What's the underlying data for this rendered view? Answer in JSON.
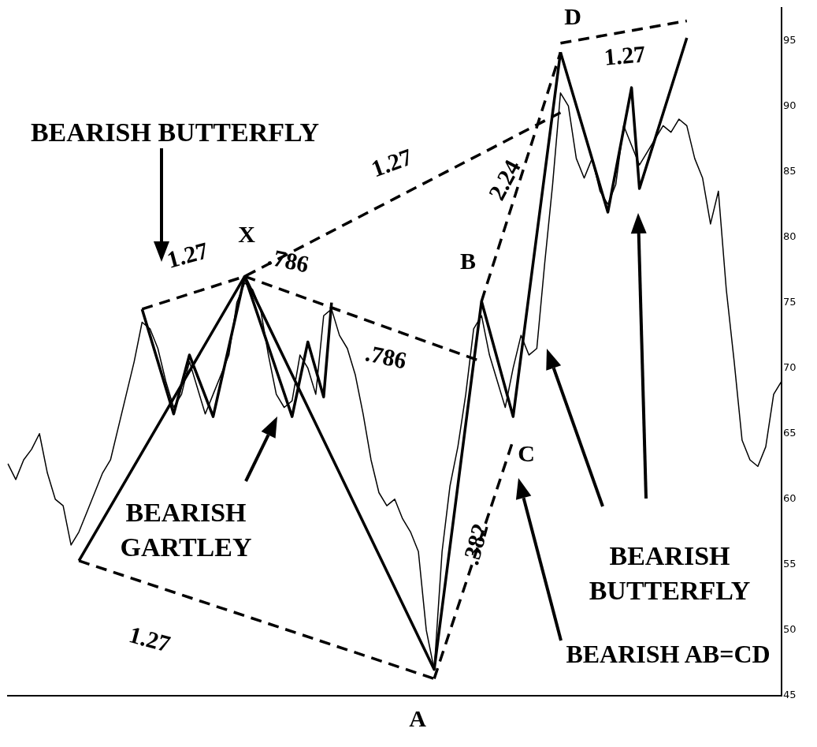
{
  "chart_data": {
    "type": "line",
    "categories": [
      null,
      null,
      null,
      null,
      null,
      null,
      null,
      null,
      null,
      null,
      null,
      null,
      null,
      null,
      null,
      null,
      null,
      null,
      null,
      null,
      null,
      null,
      null,
      null,
      null,
      null,
      null,
      null,
      null,
      null,
      null,
      null,
      null,
      null,
      null,
      null,
      null,
      null,
      null,
      null,
      null,
      null,
      null,
      null,
      null,
      null,
      null,
      null,
      null,
      null,
      null,
      null,
      null,
      null,
      null,
      null,
      null,
      null,
      null,
      null,
      null,
      null,
      null,
      null,
      null,
      null,
      null,
      null,
      null,
      null,
      null,
      null,
      null,
      null,
      null,
      null,
      null,
      null,
      null,
      null,
      null,
      null,
      null,
      null,
      null,
      null,
      null,
      null,
      null,
      null,
      null,
      null,
      null,
      null,
      null,
      null,
      null,
      null,
      null
    ],
    "ylim": [
      45,
      97.5
    ],
    "yticks": [
      45,
      50,
      55,
      60,
      65,
      70,
      75,
      80,
      85,
      90,
      95
    ],
    "tick_labels": "y",
    "grid": false,
    "legend": false,
    "marker": "none",
    "series": [
      {
        "color": "#000000",
        "line_style": "solid",
        "values": [
          62.7,
          61.5,
          63,
          63.8,
          65,
          62,
          60,
          59.5,
          56.5,
          57.5,
          59,
          60.5,
          62,
          63,
          65.5,
          68,
          70.5,
          73.5,
          73,
          71.5,
          69,
          67,
          68,
          70.5,
          68.5,
          66.5,
          68,
          69.5,
          71,
          75,
          76.5,
          76,
          74.5,
          71,
          68,
          67,
          67.5,
          71,
          70,
          68,
          74,
          74.5,
          72.5,
          71.5,
          69.5,
          66.5,
          63,
          60.5,
          59.5,
          60,
          58.5,
          57.5,
          56,
          50,
          47,
          56,
          61,
          64,
          68,
          73,
          74,
          71,
          69,
          67,
          70,
          72.5,
          71,
          71.5,
          78,
          84,
          91,
          90,
          86,
          84.5,
          86,
          83.5,
          82.5,
          84,
          88.5,
          87,
          85.5,
          86.5,
          87.5,
          88.5,
          88,
          89,
          88.5,
          86,
          84.5,
          81,
          83.5,
          76,
          70.5,
          64.5,
          63,
          62.5,
          64,
          68,
          69
        ]
      },
      {
        "color": "#000000",
        "line_style": "solid",
        "values": [
          null,
          null,
          null,
          null,
          null,
          null,
          null,
          null,
          null,
          55.3,
          null,
          null,
          null,
          null,
          null,
          null,
          null,
          null,
          null,
          null,
          null,
          null,
          null,
          null,
          null,
          null,
          null,
          null,
          null,
          null,
          77,
          null,
          null,
          null,
          null,
          null,
          null,
          null,
          null,
          null,
          null,
          null,
          null,
          null,
          null,
          null,
          null,
          null,
          null,
          null,
          null,
          null,
          null,
          null,
          47,
          null,
          null,
          null,
          null,
          null,
          75.1,
          null,
          null,
          null,
          66.3,
          null,
          null,
          null,
          null,
          null,
          94.1,
          null,
          null,
          null,
          null,
          null,
          null,
          null,
          null,
          null,
          null,
          null,
          null,
          null,
          null,
          null,
          null,
          null,
          null,
          null,
          null,
          null,
          null,
          null,
          null,
          null,
          null,
          null,
          null
        ]
      },
      {
        "color": "#000000",
        "line_style": "solid",
        "values": [
          null,
          null,
          null,
          null,
          null,
          null,
          null,
          null,
          null,
          null,
          null,
          null,
          null,
          null,
          null,
          null,
          null,
          74.5,
          null,
          null,
          null,
          66.5,
          null,
          71,
          null,
          null,
          66.3,
          null,
          null,
          null,
          77,
          null,
          null,
          null,
          null,
          null,
          null,
          null,
          null,
          null,
          null,
          null,
          null,
          null,
          null,
          null,
          null,
          null,
          null,
          null,
          null,
          null,
          null,
          null,
          null,
          null,
          null,
          null,
          null,
          null,
          null,
          null,
          null,
          null,
          null,
          null,
          null,
          null,
          null,
          null,
          null,
          null,
          null,
          null,
          null,
          null,
          null,
          null,
          null,
          null,
          null,
          null,
          null,
          null,
          null,
          null,
          null,
          null,
          null,
          null,
          null,
          null,
          null,
          null,
          null,
          null,
          null,
          null,
          null
        ]
      },
      {
        "color": "#000000",
        "line_style": "solid",
        "values": [
          null,
          null,
          null,
          null,
          null,
          null,
          null,
          null,
          null,
          null,
          null,
          null,
          null,
          null,
          null,
          null,
          null,
          null,
          null,
          null,
          null,
          null,
          null,
          null,
          null,
          null,
          null,
          null,
          null,
          null,
          77,
          null,
          null,
          null,
          null,
          null,
          66.3,
          null,
          72,
          null,
          67.8,
          75,
          null,
          null,
          null,
          null,
          null,
          null,
          null,
          null,
          null,
          null,
          null,
          null,
          null,
          null,
          null,
          null,
          null,
          null,
          null,
          null,
          null,
          null,
          null,
          null,
          null,
          null,
          null,
          null,
          null,
          null,
          null,
          null,
          null,
          null,
          null,
          null,
          null,
          null,
          null,
          null,
          null,
          null,
          null,
          null,
          null,
          null,
          null,
          null,
          null,
          null,
          null,
          null,
          null,
          null,
          null,
          null,
          null
        ]
      },
      {
        "color": "#000000",
        "line_style": "solid",
        "values": [
          null,
          null,
          null,
          null,
          null,
          null,
          null,
          null,
          null,
          null,
          null,
          null,
          null,
          null,
          null,
          null,
          null,
          null,
          null,
          null,
          null,
          null,
          null,
          null,
          null,
          null,
          null,
          null,
          null,
          null,
          null,
          null,
          null,
          null,
          null,
          null,
          null,
          null,
          null,
          null,
          null,
          null,
          null,
          null,
          null,
          null,
          null,
          null,
          null,
          null,
          null,
          null,
          null,
          null,
          null,
          null,
          null,
          null,
          null,
          null,
          null,
          null,
          null,
          null,
          null,
          null,
          null,
          null,
          null,
          null,
          94.1,
          null,
          null,
          null,
          null,
          null,
          81.9,
          null,
          null,
          91.4,
          83.7,
          null,
          null,
          null,
          null,
          null,
          95.2,
          null,
          null,
          null,
          null,
          null,
          null,
          null,
          null,
          null,
          null,
          null,
          null
        ]
      },
      {
        "color": "#000000",
        "line_style": "dashed",
        "values": [
          null,
          null,
          null,
          null,
          null,
          null,
          null,
          null,
          null,
          55.3,
          null,
          null,
          null,
          null,
          null,
          null,
          null,
          null,
          null,
          null,
          null,
          null,
          null,
          null,
          null,
          null,
          null,
          null,
          null,
          null,
          null,
          null,
          null,
          null,
          null,
          null,
          null,
          null,
          null,
          null,
          null,
          null,
          null,
          null,
          null,
          null,
          null,
          null,
          null,
          null,
          null,
          null,
          null,
          null,
          46.3,
          null,
          null,
          null,
          null,
          null,
          null,
          null,
          null,
          null,
          null,
          null,
          null,
          null,
          null,
          null,
          null,
          null,
          null,
          null,
          null,
          null,
          null,
          null,
          null,
          null,
          null,
          null,
          null,
          null,
          null,
          null,
          null,
          null,
          null,
          null,
          null,
          null,
          null,
          null,
          null,
          null,
          null,
          null,
          null
        ]
      },
      {
        "color": "#000000",
        "line_style": "dashed",
        "values": [
          null,
          null,
          null,
          null,
          null,
          null,
          null,
          null,
          null,
          null,
          null,
          null,
          null,
          null,
          null,
          null,
          null,
          74.5,
          null,
          null,
          null,
          null,
          null,
          null,
          null,
          null,
          null,
          null,
          null,
          null,
          77,
          null,
          null,
          null,
          null,
          null,
          null,
          null,
          null,
          null,
          null,
          null,
          null,
          null,
          null,
          null,
          null,
          null,
          null,
          null,
          null,
          null,
          null,
          null,
          null,
          null,
          null,
          null,
          null,
          null,
          null,
          null,
          null,
          null,
          null,
          null,
          null,
          null,
          null,
          null,
          89.5,
          null,
          null,
          null,
          null,
          null,
          null,
          null,
          null,
          null,
          null,
          null,
          null,
          null,
          null,
          null,
          null,
          null,
          null,
          null,
          null,
          null,
          null,
          null,
          null,
          null,
          null,
          null,
          null
        ]
      },
      {
        "color": "#000000",
        "line_style": "dashed",
        "values": [
          null,
          null,
          null,
          null,
          null,
          null,
          null,
          null,
          null,
          null,
          null,
          null,
          null,
          null,
          null,
          null,
          null,
          null,
          null,
          null,
          null,
          null,
          null,
          null,
          null,
          null,
          null,
          null,
          null,
          null,
          77,
          null,
          null,
          null,
          null,
          null,
          null,
          null,
          null,
          null,
          null,
          null,
          null,
          null,
          null,
          null,
          null,
          null,
          null,
          null,
          null,
          null,
          null,
          null,
          null,
          null,
          null,
          null,
          null,
          null,
          70.5,
          null,
          null,
          null,
          null,
          null,
          null,
          null,
          null,
          null,
          null,
          null,
          null,
          null,
          null,
          null,
          null,
          null,
          null,
          null,
          null,
          null,
          null,
          null,
          null,
          null,
          null,
          null,
          null,
          null,
          null,
          null,
          null,
          null,
          null,
          null,
          null,
          null,
          null
        ]
      },
      {
        "color": "#000000",
        "line_style": "dashed",
        "values": [
          null,
          null,
          null,
          null,
          null,
          null,
          null,
          null,
          null,
          null,
          null,
          null,
          null,
          null,
          null,
          null,
          null,
          null,
          null,
          null,
          null,
          null,
          null,
          null,
          null,
          null,
          null,
          null,
          null,
          null,
          null,
          null,
          null,
          null,
          null,
          null,
          null,
          null,
          null,
          null,
          null,
          null,
          null,
          null,
          null,
          null,
          null,
          null,
          null,
          null,
          null,
          null,
          null,
          null,
          46.3,
          null,
          null,
          null,
          null,
          null,
          null,
          null,
          null,
          null,
          64.5,
          null,
          null,
          null,
          null,
          null,
          null,
          null,
          null,
          null,
          null,
          null,
          null,
          null,
          null,
          null,
          null,
          null,
          null,
          null,
          null,
          null,
          null,
          null,
          null,
          null,
          null,
          null,
          null,
          null,
          null,
          null,
          null,
          null,
          null
        ]
      },
      {
        "color": "#000000",
        "line_style": "dashed",
        "values": [
          null,
          null,
          null,
          null,
          null,
          null,
          null,
          null,
          null,
          null,
          null,
          null,
          null,
          null,
          null,
          null,
          null,
          null,
          null,
          null,
          null,
          null,
          null,
          null,
          null,
          null,
          null,
          null,
          null,
          null,
          null,
          null,
          null,
          null,
          null,
          null,
          null,
          null,
          null,
          null,
          null,
          null,
          null,
          null,
          null,
          null,
          null,
          null,
          null,
          null,
          null,
          null,
          null,
          null,
          null,
          null,
          null,
          null,
          null,
          null,
          75.1,
          null,
          null,
          null,
          null,
          null,
          null,
          null,
          null,
          null,
          94.1,
          null,
          null,
          null,
          null,
          null,
          null,
          null,
          null,
          null,
          null,
          null,
          null,
          null,
          null,
          null,
          null,
          null,
          null,
          null,
          null,
          null,
          null,
          null,
          null,
          null,
          null,
          null,
          null
        ]
      },
      {
        "color": "#000000",
        "line_style": "dashed",
        "values": [
          null,
          null,
          null,
          null,
          null,
          null,
          null,
          null,
          null,
          null,
          null,
          null,
          null,
          null,
          null,
          null,
          null,
          null,
          null,
          null,
          null,
          null,
          null,
          null,
          null,
          null,
          null,
          null,
          null,
          null,
          null,
          null,
          null,
          null,
          null,
          null,
          null,
          null,
          null,
          null,
          null,
          null,
          null,
          null,
          null,
          null,
          null,
          null,
          null,
          null,
          null,
          null,
          null,
          null,
          null,
          null,
          null,
          null,
          null,
          null,
          null,
          null,
          null,
          null,
          null,
          null,
          null,
          null,
          null,
          null,
          94.8,
          null,
          null,
          null,
          null,
          null,
          null,
          null,
          null,
          null,
          null,
          null,
          null,
          null,
          null,
          null,
          96.5,
          null,
          null,
          null,
          null,
          null,
          null,
          null,
          null,
          null,
          null,
          null,
          null
        ]
      }
    ],
    "annotations": [
      "BEARISH BUTTERFLY",
      "X",
      "1.27",
      ".786",
      ".786",
      "1.27",
      "B",
      "2.24",
      "D",
      "1.27",
      "BEARISH\nGARTLEY",
      "C",
      ".382",
      "1.27",
      "A",
      "BEARISH\nBUTTERFLY",
      "BEARISH AB=CD"
    ]
  }
}
